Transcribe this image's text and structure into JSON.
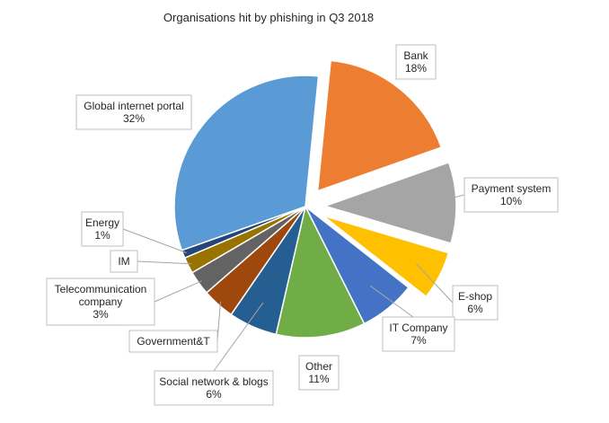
{
  "chart_data": {
    "type": "pie",
    "title": "Organisations hit by phishing in Q3 2018",
    "slices": [
      {
        "label": "Bank",
        "value_label": "18%",
        "value": 18,
        "color": "#ED7D31",
        "exploded": true
      },
      {
        "label": "Payment system",
        "value_label": "10%",
        "value": 10,
        "color": "#A5A5A5",
        "exploded": true
      },
      {
        "label": "E-shop",
        "value_label": "6%",
        "value": 6,
        "color": "#FFC000",
        "exploded": true
      },
      {
        "label": "IT Company",
        "value_label": "7%",
        "value": 7,
        "color": "#4472C4",
        "exploded": false
      },
      {
        "label": "Other",
        "value_label": "11%",
        "value": 11,
        "color": "#70AD47",
        "exploded": false
      },
      {
        "label": "Social network & blogs",
        "value_label": "6%",
        "value": 6,
        "color": "#255E91",
        "exploded": false
      },
      {
        "label": "Government&T",
        "value_label": "",
        "value": 4,
        "color": "#9E480E",
        "exploded": false
      },
      {
        "label": "Telecommunication company",
        "value_label": "3%",
        "value": 3,
        "color": "#636363",
        "exploded": false
      },
      {
        "label": "IM",
        "value_label": "",
        "value": 2,
        "color": "#997300",
        "exploded": false
      },
      {
        "label": "Energy",
        "value_label": "1%",
        "value": 1,
        "color": "#264478",
        "exploded": false
      },
      {
        "label": "Global internet portal",
        "value_label": "32%",
        "value": 32,
        "color": "#5B9BD5",
        "exploded": false
      }
    ],
    "legend": "none"
  }
}
